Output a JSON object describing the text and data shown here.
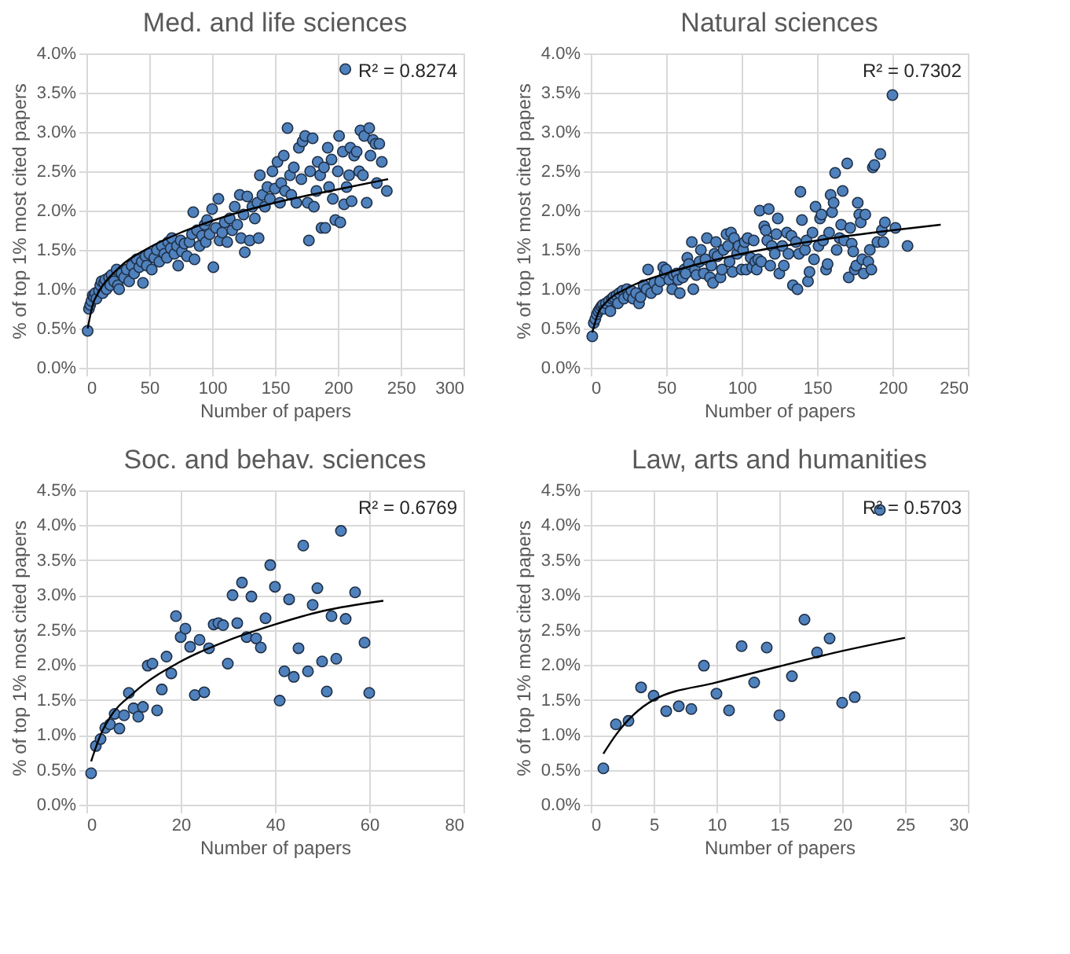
{
  "chart_data": [
    {
      "type": "scatter",
      "title": "Med. and life sciences",
      "xlabel": "Number of papers",
      "ylabel": "% of top 1% most cited papers",
      "annotations": [
        "R² = 0.8274"
      ],
      "grid": true,
      "xlim": [
        0,
        300
      ],
      "xticks": [
        0,
        50,
        100,
        150,
        200,
        250,
        300
      ],
      "ylim": [
        0,
        4
      ],
      "yticks": [
        {
          "value": 0,
          "label": "0.0%"
        },
        {
          "value": 0.5,
          "label": "0.5%"
        },
        {
          "value": 1,
          "label": "1.0%"
        },
        {
          "value": 1.5,
          "label": "1.5%"
        },
        {
          "value": 2,
          "label": "2.0%"
        },
        {
          "value": 2.5,
          "label": "2.5%"
        },
        {
          "value": 3,
          "label": "3.0%"
        },
        {
          "value": 3.5,
          "label": "3.5%"
        },
        {
          "value": 4,
          "label": "4.0%"
        }
      ],
      "series": [
        {
          "marker": "circle",
          "color": "#4f81bd",
          "x": [
            1,
            2,
            3,
            4,
            5,
            6,
            7,
            8,
            10,
            11,
            12,
            13,
            14,
            15,
            16,
            18,
            19,
            20,
            22,
            24,
            25,
            26,
            28,
            30,
            32,
            34,
            36,
            38,
            40,
            42,
            44,
            45,
            47,
            48,
            50,
            52,
            54,
            56,
            58,
            60,
            62,
            64,
            65,
            67,
            68,
            70,
            72,
            73,
            75,
            76,
            78,
            80,
            82,
            84,
            85,
            86,
            88,
            90,
            92,
            94,
            95,
            96,
            98,
            100,
            101,
            103,
            105,
            106,
            108,
            110,
            112,
            114,
            116,
            118,
            120,
            122,
            123,
            125,
            126,
            128,
            130,
            132,
            134,
            136,
            137,
            138,
            140,
            142,
            144,
            146,
            148,
            150,
            152,
            154,
            155,
            157,
            158,
            160,
            162,
            163,
            165,
            167,
            169,
            171,
            172,
            174,
            176,
            177,
            178,
            180,
            181,
            183,
            184,
            186,
            187,
            189,
            190,
            192,
            193,
            195,
            196,
            198,
            200,
            201,
            202,
            204,
            205,
            206,
            207,
            209,
            210,
            211,
            213,
            215,
            217,
            218,
            220,
            221,
            223,
            225,
            226,
            228,
            230,
            231,
            233,
            235,
            239
          ],
          "values": [
            0.47,
            0.75,
            0.8,
            0.85,
            0.92,
            0.9,
            0.95,
            0.88,
            0.98,
            1.05,
            1.1,
            0.95,
            1.08,
            1.12,
            1.0,
            1.15,
            1.05,
            1.18,
            1.1,
            1.25,
            1.05,
            1.0,
            1.2,
            1.15,
            1.25,
            1.1,
            1.3,
            1.2,
            1.38,
            1.28,
            1.35,
            1.08,
            1.42,
            1.3,
            1.45,
            1.25,
            1.4,
            1.5,
            1.35,
            1.55,
            1.45,
            1.4,
            1.6,
            1.52,
            1.65,
            1.45,
            1.55,
            1.3,
            1.62,
            1.48,
            1.58,
            1.42,
            1.6,
            1.7,
            1.98,
            1.38,
            1.75,
            1.55,
            1.68,
            1.82,
            1.6,
            1.88,
            1.7,
            2.02,
            1.28,
            1.78,
            2.15,
            1.62,
            1.72,
            1.85,
            1.6,
            1.9,
            1.75,
            2.05,
            1.82,
            2.2,
            1.65,
            1.95,
            1.47,
            2.18,
            1.62,
            2.05,
            1.9,
            2.1,
            1.65,
            2.45,
            2.2,
            2.05,
            2.3,
            2.15,
            2.5,
            2.28,
            2.62,
            2.1,
            2.35,
            2.7,
            2.25,
            3.05,
            2.45,
            2.2,
            2.55,
            2.1,
            2.8,
            2.4,
            2.88,
            2.95,
            2.1,
            1.62,
            2.5,
            2.92,
            2.05,
            2.25,
            2.62,
            2.45,
            1.78,
            2.55,
            1.78,
            2.8,
            2.3,
            2.65,
            2.15,
            1.88,
            2.5,
            2.95,
            1.85,
            2.75,
            2.08,
            3.8,
            2.3,
            2.45,
            2.8,
            2.12,
            2.7,
            2.75,
            2.5,
            3.02,
            2.45,
            2.95,
            2.1,
            3.05,
            2.7,
            2.9,
            2.85,
            2.35,
            2.85,
            2.62,
            2.25
          ]
        },
        {
          "type": "line",
          "color": "#000000",
          "x": [
            1,
            5,
            10,
            25,
            50,
            75,
            100,
            150,
            200,
            240
          ],
          "values": [
            0.5,
            0.8,
            0.97,
            1.26,
            1.53,
            1.72,
            1.87,
            2.1,
            2.27,
            2.4
          ]
        }
      ]
    },
    {
      "type": "scatter",
      "title": "Natural sciences",
      "xlabel": "Number of papers",
      "ylabel": "% of top 1% most cited papers",
      "annotations": [
        "R² = 0.7302"
      ],
      "grid": true,
      "xlim": [
        0,
        250
      ],
      "xticks": [
        0,
        50,
        100,
        150,
        200,
        250
      ],
      "ylim": [
        0,
        4
      ],
      "yticks": [
        {
          "value": 0,
          "label": "0.0%"
        },
        {
          "value": 0.5,
          "label": "0.5%"
        },
        {
          "value": 1,
          "label": "1.0%"
        },
        {
          "value": 1.5,
          "label": "1.5%"
        },
        {
          "value": 2,
          "label": "2.0%"
        },
        {
          "value": 2.5,
          "label": "2.5%"
        },
        {
          "value": 3,
          "label": "3.0%"
        },
        {
          "value": 3.5,
          "label": "3.5%"
        },
        {
          "value": 4,
          "label": "4.0%"
        }
      ],
      "series": [
        {
          "marker": "circle",
          "color": "#4f81bd",
          "x": [
            1,
            2,
            3,
            4,
            5,
            6,
            7,
            8,
            9,
            10,
            12,
            13,
            14,
            15,
            17,
            18,
            19,
            21,
            22,
            24,
            25,
            27,
            28,
            30,
            32,
            33,
            35,
            37,
            38,
            40,
            42,
            44,
            46,
            48,
            49,
            50,
            52,
            54,
            55,
            57,
            58,
            59,
            61,
            62,
            63,
            64,
            65,
            67,
            68,
            69,
            70,
            72,
            73,
            75,
            76,
            77,
            79,
            80,
            81,
            82,
            83,
            84,
            86,
            87,
            88,
            90,
            91,
            92,
            93,
            94,
            95,
            97,
            98,
            100,
            101,
            102,
            103,
            104,
            106,
            107,
            108,
            109,
            110,
            111,
            112,
            113,
            115,
            116,
            117,
            118,
            119,
            120,
            122,
            123,
            124,
            125,
            127,
            128,
            130,
            131,
            133,
            134,
            136,
            137,
            138,
            139,
            140,
            142,
            143,
            144,
            145,
            147,
            148,
            149,
            151,
            152,
            153,
            154,
            156,
            157,
            158,
            159,
            160,
            161,
            162,
            163,
            165,
            166,
            167,
            168,
            170,
            171,
            172,
            173,
            174,
            175,
            176,
            177,
            178,
            179,
            180,
            181,
            182,
            184,
            185,
            186,
            187,
            188,
            190,
            192,
            193,
            194,
            195,
            200,
            202,
            210
          ],
          "values": [
            0.4,
            0.57,
            0.62,
            0.68,
            0.72,
            0.75,
            0.78,
            0.8,
            0.75,
            0.82,
            0.85,
            0.72,
            0.88,
            0.9,
            0.92,
            0.82,
            0.95,
            0.98,
            0.88,
            1.0,
            0.92,
            0.98,
            0.88,
            0.95,
            0.82,
            0.9,
            1.05,
            1.0,
            1.25,
            0.95,
            1.08,
            1.0,
            1.1,
            1.28,
            1.2,
            1.25,
            1.12,
            1.0,
            1.18,
            1.2,
            1.12,
            0.95,
            1.15,
            1.25,
            1.2,
            1.4,
            1.32,
            1.6,
            1.0,
            1.25,
            1.18,
            1.35,
            1.5,
            1.2,
            1.38,
            1.65,
            1.15,
            1.3,
            1.08,
            1.45,
            1.6,
            1.42,
            1.15,
            1.25,
            1.5,
            1.7,
            1.55,
            1.35,
            1.72,
            1.22,
            1.65,
            1.45,
            1.55,
            1.25,
            1.5,
            1.6,
            1.25,
            1.65,
            1.4,
            1.28,
            1.62,
            1.35,
            1.25,
            1.38,
            2.0,
            1.35,
            1.8,
            1.75,
            1.62,
            2.02,
            1.3,
            1.55,
            1.45,
            1.7,
            1.9,
            1.2,
            1.55,
            1.3,
            1.72,
            1.45,
            1.68,
            1.05,
            1.6,
            1.0,
            1.45,
            2.24,
            1.88,
            1.5,
            1.62,
            1.1,
            1.22,
            1.72,
            1.38,
            2.05,
            1.55,
            1.9,
            1.95,
            1.62,
            1.25,
            1.32,
            1.72,
            2.2,
            1.98,
            2.1,
            2.48,
            1.5,
            1.65,
            1.82,
            2.25,
            1.62,
            2.6,
            1.15,
            1.78,
            1.58,
            1.48,
            1.25,
            1.3,
            2.1,
            1.95,
            1.85,
            1.38,
            1.2,
            1.95,
            1.35,
            1.5,
            1.25,
            2.55,
            2.58,
            1.6,
            2.72,
            1.75,
            1.6,
            1.85,
            3.47,
            1.78,
            1.55
          ]
        },
        {
          "type": "line",
          "color": "#000000",
          "x": [
            1,
            5,
            10,
            25,
            50,
            100,
            150,
            200,
            232
          ],
          "values": [
            0.45,
            0.7,
            0.83,
            1.02,
            1.2,
            1.45,
            1.62,
            1.75,
            1.82
          ]
        }
      ]
    },
    {
      "type": "scatter",
      "title": "Soc. and behav. sciences",
      "xlabel": "Number of papers",
      "ylabel": "% of top 1% most cited papers",
      "annotations": [
        "R² = 0.6769"
      ],
      "grid": true,
      "xlim": [
        0,
        80
      ],
      "xticks": [
        0,
        20,
        40,
        60,
        80
      ],
      "ylim": [
        0,
        4.5
      ],
      "yticks": [
        {
          "value": 0,
          "label": "0.0%"
        },
        {
          "value": 0.5,
          "label": "0.5%"
        },
        {
          "value": 1,
          "label": "1.0%"
        },
        {
          "value": 1.5,
          "label": "1.5%"
        },
        {
          "value": 2,
          "label": "2.0%"
        },
        {
          "value": 2.5,
          "label": "2.5%"
        },
        {
          "value": 3,
          "label": "3.0%"
        },
        {
          "value": 3.5,
          "label": "3.5%"
        },
        {
          "value": 4,
          "label": "4.0%"
        },
        {
          "value": 4.5,
          "label": "4.5%"
        }
      ],
      "series": [
        {
          "marker": "circle",
          "color": "#4f81bd",
          "x": [
            1,
            2,
            3,
            4,
            5,
            6,
            7,
            8,
            9,
            10,
            11,
            12,
            13,
            14,
            15,
            16,
            17,
            18,
            19,
            20,
            21,
            22,
            23,
            24,
            25,
            26,
            27,
            28,
            29,
            30,
            31,
            32,
            33,
            34,
            35,
            36,
            37,
            38,
            39,
            40,
            41,
            42,
            43,
            44,
            45,
            46,
            47,
            48,
            49,
            50,
            51,
            52,
            53,
            54,
            55,
            57,
            59,
            60
          ],
          "values": [
            0.45,
            0.84,
            0.94,
            1.1,
            1.15,
            1.3,
            1.09,
            1.28,
            1.6,
            1.38,
            1.26,
            1.4,
            1.99,
            2.02,
            1.35,
            1.65,
            2.12,
            1.88,
            2.7,
            2.4,
            2.52,
            2.26,
            1.57,
            2.36,
            1.61,
            2.24,
            2.58,
            2.6,
            2.57,
            2.02,
            3.0,
            2.6,
            3.18,
            2.4,
            2.98,
            2.38,
            2.25,
            2.67,
            3.43,
            3.12,
            1.49,
            1.91,
            2.94,
            1.83,
            2.24,
            3.71,
            1.91,
            2.86,
            3.1,
            2.05,
            1.62,
            2.7,
            2.09,
            3.92,
            2.66,
            3.04,
            2.32,
            1.6
          ]
        },
        {
          "type": "line",
          "color": "#000000",
          "x": [
            1,
            3,
            5,
            10,
            20,
            30,
            40,
            50,
            63
          ],
          "values": [
            0.62,
            1.0,
            1.25,
            1.6,
            2.05,
            2.35,
            2.58,
            2.77,
            2.92
          ]
        }
      ]
    },
    {
      "type": "scatter",
      "title": "Law, arts and humanities",
      "xlabel": "Number of papers",
      "ylabel": "% of top 1% most cited papers",
      "annotations": [
        "R² = 0.5703"
      ],
      "grid": true,
      "xlim": [
        0,
        30
      ],
      "xticks": [
        0,
        5,
        10,
        15,
        20,
        25,
        30
      ],
      "ylim": [
        0,
        4.5
      ],
      "yticks": [
        {
          "value": 0,
          "label": "0.0%"
        },
        {
          "value": 0.5,
          "label": "0.5%"
        },
        {
          "value": 1,
          "label": "1.0%"
        },
        {
          "value": 1.5,
          "label": "1.5%"
        },
        {
          "value": 2,
          "label": "2.0%"
        },
        {
          "value": 2.5,
          "label": "2.5%"
        },
        {
          "value": 3,
          "label": "3.0%"
        },
        {
          "value": 3.5,
          "label": "3.5%"
        },
        {
          "value": 4,
          "label": "4.0%"
        },
        {
          "value": 4.5,
          "label": "4.5%"
        }
      ],
      "series": [
        {
          "marker": "circle",
          "color": "#4f81bd",
          "x": [
            1,
            2,
            3,
            4,
            5,
            6,
            7,
            8,
            9,
            10,
            11,
            12,
            13,
            14,
            15,
            16,
            17,
            18,
            19,
            20,
            21,
            23
          ],
          "values": [
            0.52,
            1.15,
            1.2,
            1.68,
            1.56,
            1.34,
            1.41,
            1.37,
            1.99,
            1.59,
            1.35,
            2.27,
            1.75,
            2.25,
            1.28,
            1.84,
            2.65,
            2.18,
            2.38,
            1.46,
            1.54,
            4.22
          ]
        },
        {
          "type": "line",
          "color": "#000000",
          "x": [
            1,
            2,
            5,
            10,
            15,
            20,
            25
          ],
          "values": [
            0.73,
            1.0,
            1.5,
            1.75,
            1.98,
            2.2,
            2.39
          ]
        }
      ]
    }
  ]
}
